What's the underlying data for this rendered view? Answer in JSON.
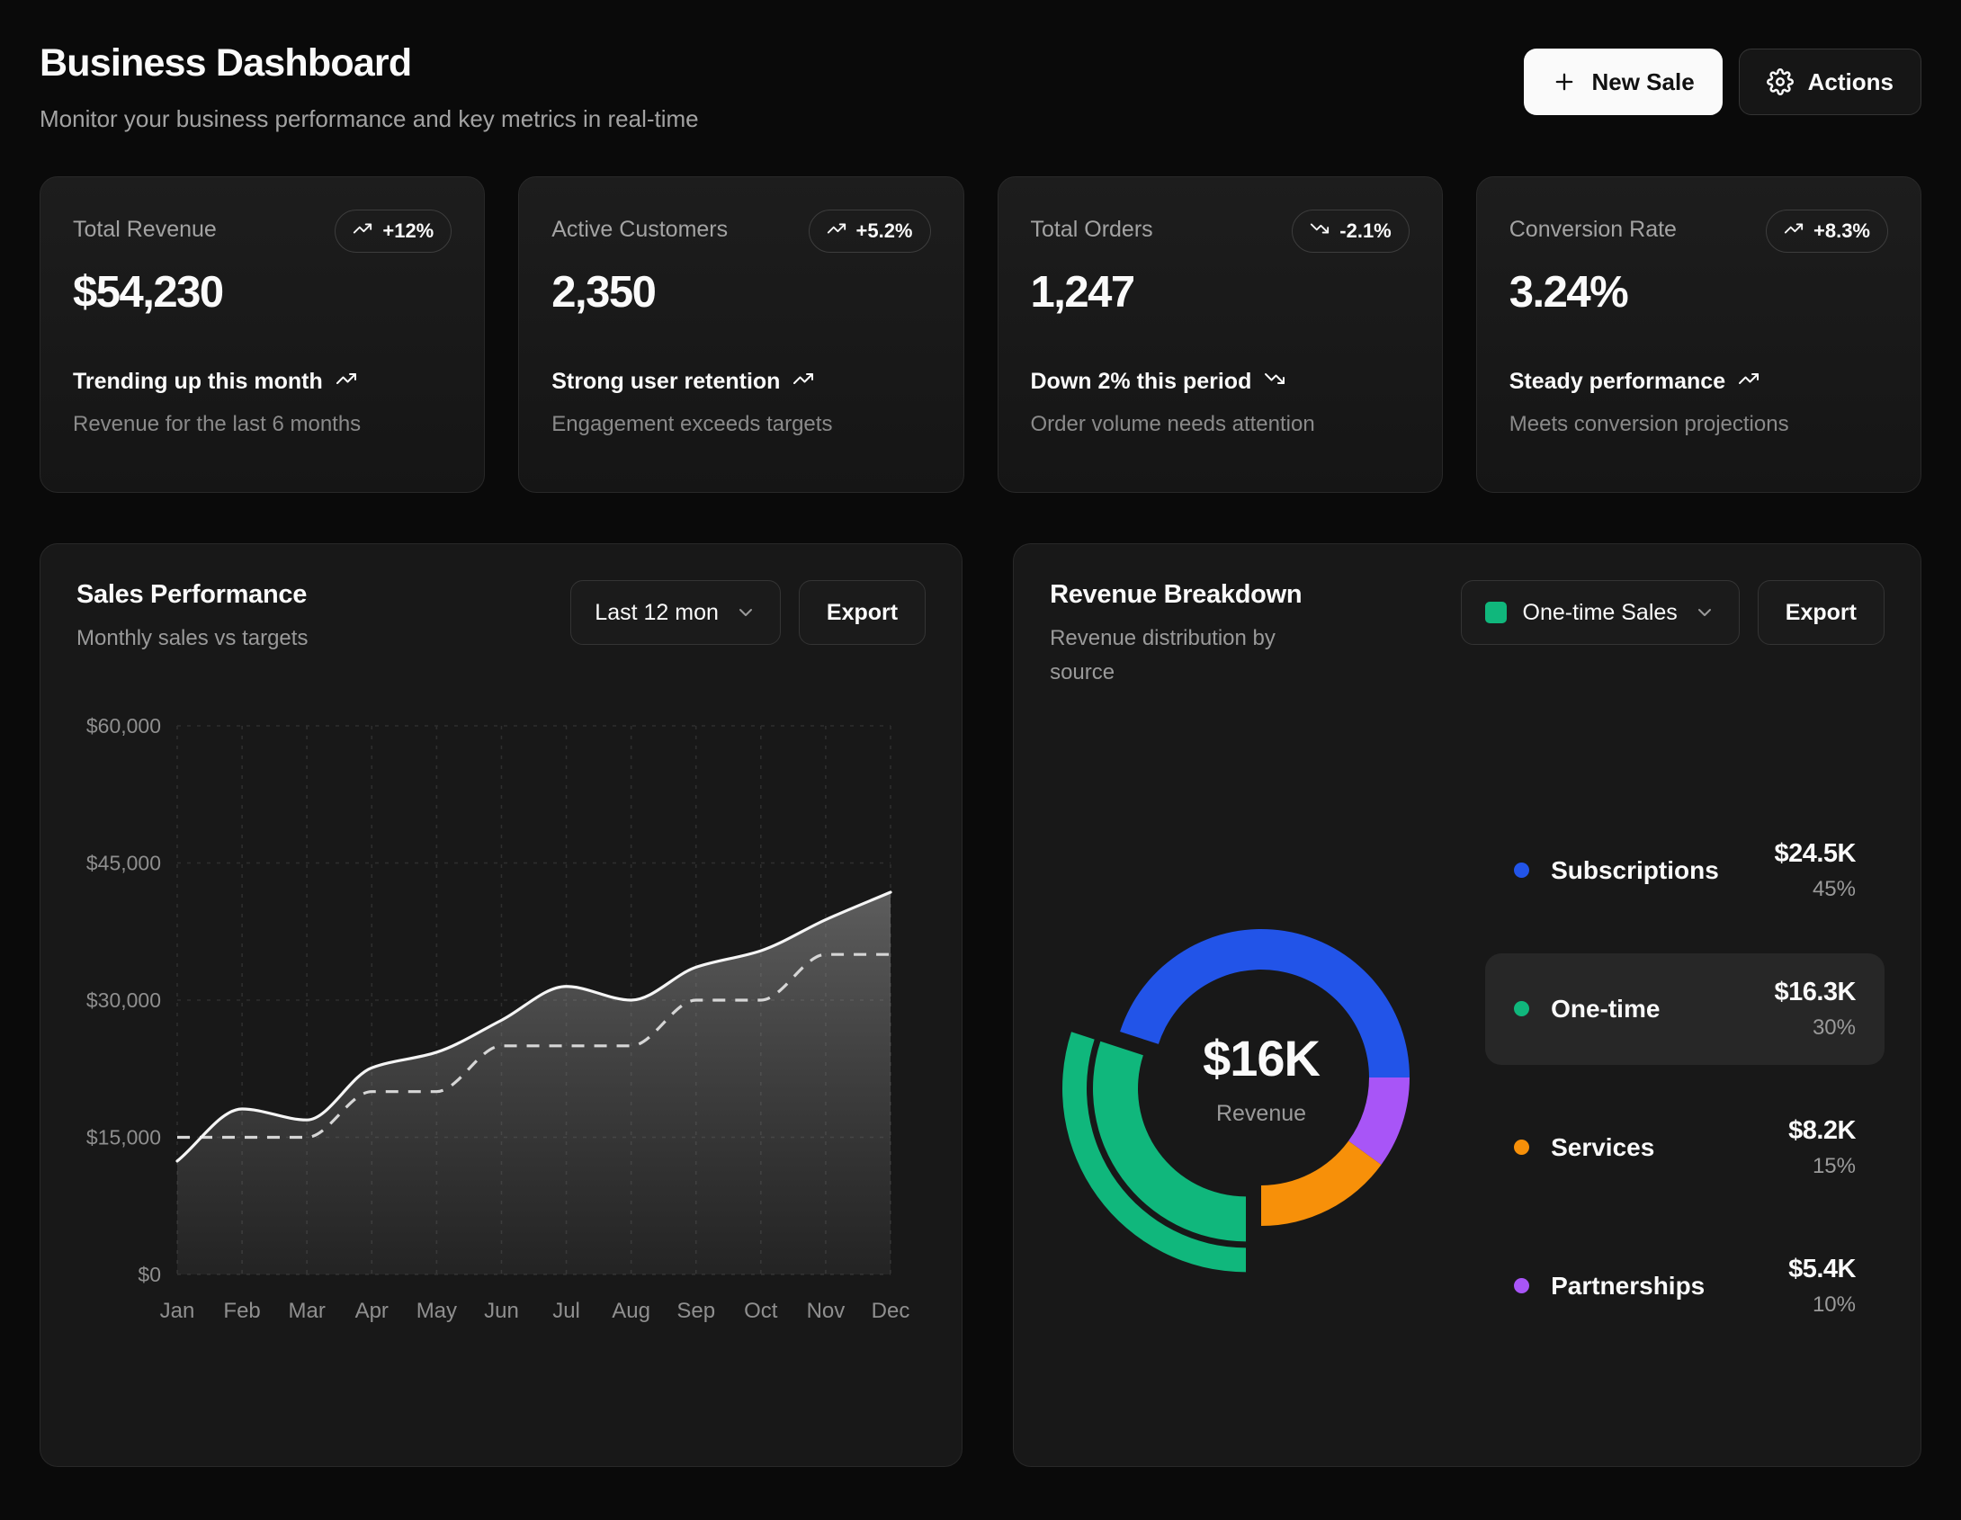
{
  "header": {
    "title": "Business Dashboard",
    "subtitle": "Monitor your business performance and key metrics in real-time",
    "new_sale_label": "New Sale",
    "actions_label": "Actions"
  },
  "stats": [
    {
      "label": "Total Revenue",
      "value": "$54,230",
      "badge": "+12%",
      "trend": "up",
      "footer_title": "Trending up this month",
      "footer_sub": "Revenue for the last 6 months"
    },
    {
      "label": "Active Customers",
      "value": "2,350",
      "badge": "+5.2%",
      "trend": "up",
      "footer_title": "Strong user retention",
      "footer_sub": "Engagement exceeds targets"
    },
    {
      "label": "Total Orders",
      "value": "1,247",
      "badge": "-2.1%",
      "trend": "down",
      "footer_title": "Down 2% this period",
      "footer_sub": "Order volume needs attention"
    },
    {
      "label": "Conversion Rate",
      "value": "3.24%",
      "badge": "+8.3%",
      "trend": "up",
      "footer_title": "Steady performance",
      "footer_sub": "Meets conversion projections"
    }
  ],
  "sales_panel": {
    "title": "Sales Performance",
    "subtitle": "Monthly sales vs targets",
    "range_label": "Last 12 mon",
    "export_label": "Export"
  },
  "revenue_panel": {
    "title": "Revenue Breakdown",
    "subtitle": "Revenue distribution by source",
    "filter_label": "One-time Sales",
    "filter_color": "#10b77c",
    "export_label": "Export",
    "center_value": "$16K",
    "center_label": "Revenue"
  },
  "chart_data": [
    {
      "type": "area",
      "title": "Sales Performance",
      "x": [
        "Jan",
        "Feb",
        "Mar",
        "Apr",
        "May",
        "Jun",
        "Jul",
        "Aug",
        "Sep",
        "Oct",
        "Nov",
        "Dec"
      ],
      "series": [
        {
          "name": "Sales",
          "style": "solid-area",
          "color": "#f5f5f5",
          "values": [
            12400,
            18100,
            16900,
            22600,
            24300,
            27800,
            31500,
            30000,
            33600,
            35400,
            38800,
            41800
          ]
        },
        {
          "name": "Target",
          "style": "dashed",
          "color": "#d6d6d6",
          "values": [
            15000,
            15000,
            15000,
            20000,
            20000,
            25000,
            25000,
            25000,
            30000,
            30000,
            35000,
            35000
          ]
        }
      ],
      "ylim": [
        0,
        60000
      ],
      "yticks": [
        0,
        15000,
        30000,
        45000,
        60000
      ],
      "ytick_labels": [
        "$0",
        "$15,000",
        "$30,000",
        "$45,000",
        "$60,000"
      ],
      "grid": true,
      "legend_position": "none"
    },
    {
      "type": "pie",
      "title": "Revenue Breakdown",
      "slices": [
        {
          "label": "Subscriptions",
          "amount": 24500,
          "value_label": "$24.5K",
          "pct": 45,
          "pct_label": "45%",
          "color": "#2254e8"
        },
        {
          "label": "One-time",
          "amount": 16300,
          "value_label": "$16.3K",
          "pct": 30,
          "pct_label": "30%",
          "color": "#10b77c"
        },
        {
          "label": "Services",
          "amount": 8200,
          "value_label": "$8.2K",
          "pct": 15,
          "pct_label": "15%",
          "color": "#f79009"
        },
        {
          "label": "Partnerships",
          "amount": 5400,
          "value_label": "$5.4K",
          "pct": 10,
          "pct_label": "10%",
          "color": "#a855f7"
        }
      ],
      "start_angle_deg": -72,
      "clockwise_order": [
        "Subscriptions",
        "Partnerships",
        "Services",
        "One-time"
      ],
      "active_slice": "One-time",
      "center_value": "$16K",
      "center_label": "Revenue"
    }
  ]
}
